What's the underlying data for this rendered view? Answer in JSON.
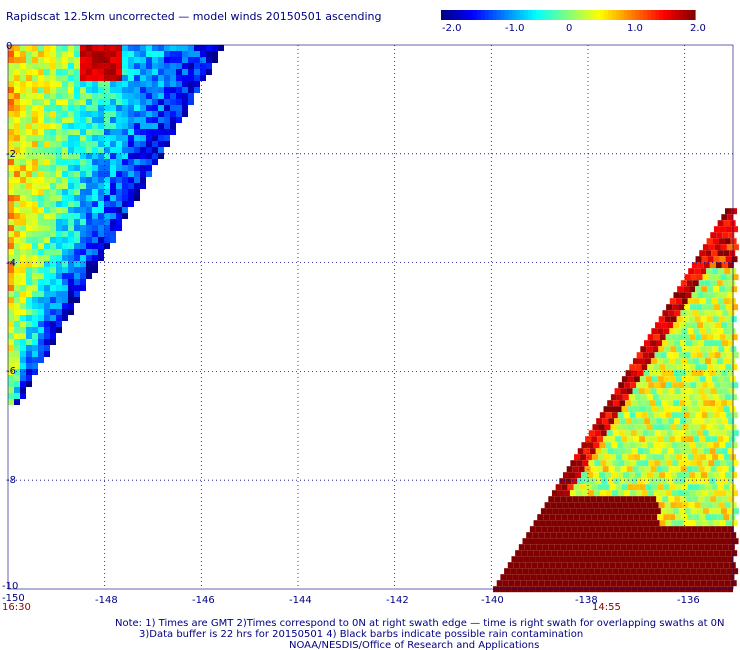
{
  "chart_data": {
    "type": "heatmap",
    "title": "Rapidscat 12.5km uncorrected — model winds 20150501 ascending",
    "colorbar": {
      "min": -2.0,
      "max": 2.0,
      "ticks": [
        "-2.0",
        "-1.0",
        "0",
        "1.0",
        "2.0"
      ],
      "colors": [
        "#000080",
        "#0000ff",
        "#0080ff",
        "#00ffff",
        "#80ff80",
        "#ffff00",
        "#ff8000",
        "#ff0000",
        "#800000"
      ]
    },
    "x_ticks": [
      "-150",
      "-148",
      "-146",
      "-144",
      "-142",
      "-140",
      "-138",
      "-136"
    ],
    "y_ticks": [
      "0",
      "-2",
      "-4",
      "-6",
      "-8",
      "-10"
    ],
    "xlim": [
      -150,
      -135
    ],
    "ylim": [
      -10,
      0
    ],
    "grid": true,
    "time_labels": [
      {
        "text": "16:30",
        "lon": -150
      },
      {
        "text": "14:55",
        "lon": -137.5
      }
    ],
    "swaths": [
      {
        "name": "",
        "lon_range": [
          -150,
          -145.6
        ],
        "lat_range": [
          -6.6,
          0
        ],
        "dominant": "cyan-blue"
      },
      {
        "name": "",
        "lon_range": [
          -140,
          -135
        ],
        "lat_range": [
          -10,
          -3.0
        ],
        "dominant": "yellow-red"
      }
    ],
    "notes": [
      "Note: 1) Times are GMT 2)Times correspond to 0N at right swath edge — time is right swath for overlapping swaths at 0N",
      "3)Data buffer is 22 hrs for 20150501 4) Black barbs indicate possible rain contamination",
      "NOAA/NESDIS/Office of Research and Applications"
    ]
  }
}
